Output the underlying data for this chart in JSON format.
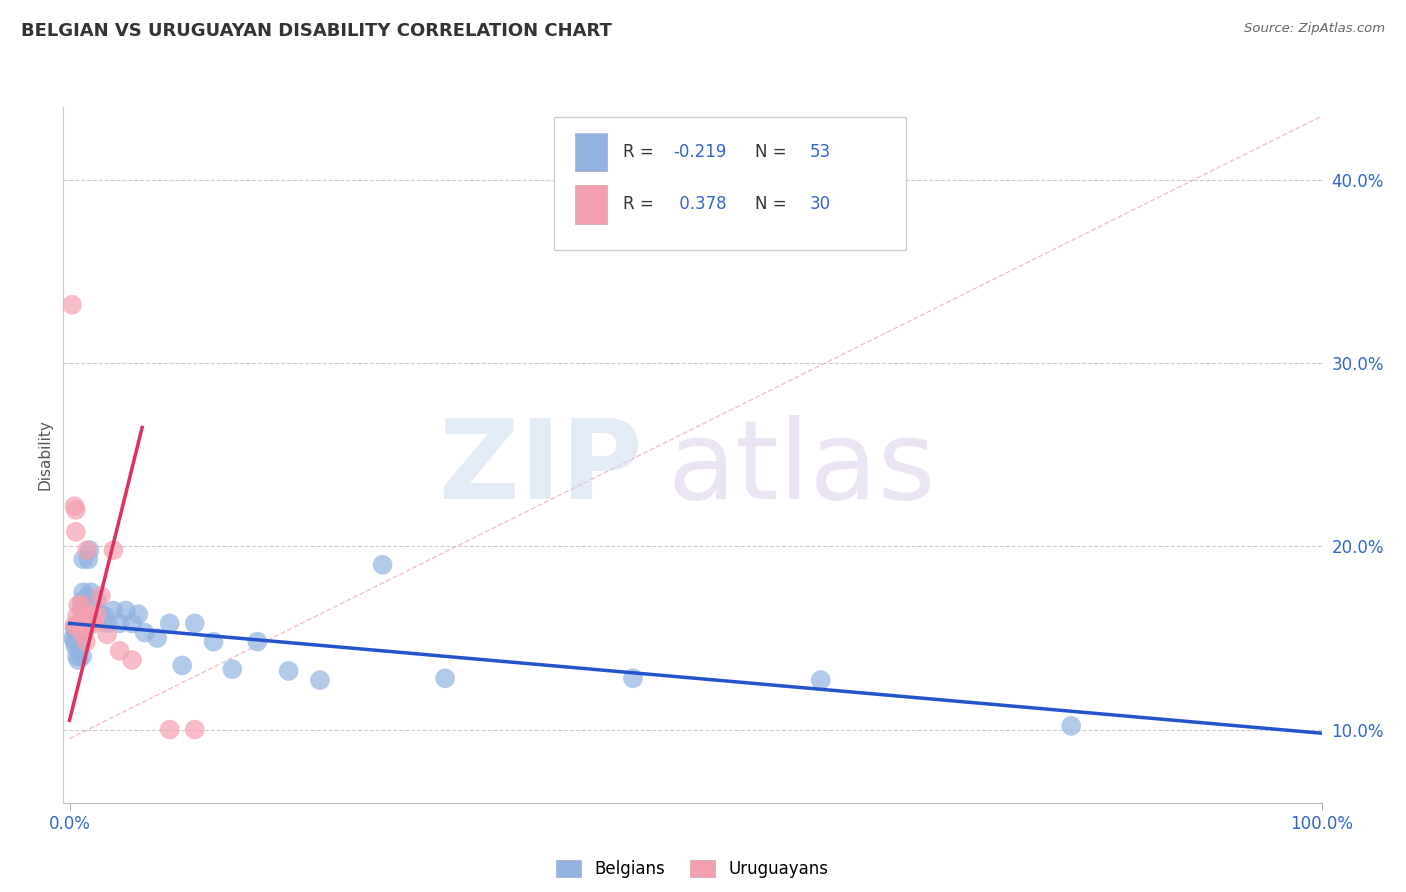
{
  "title": "BELGIAN VS URUGUAYAN DISABILITY CORRELATION CHART",
  "source": "Source: ZipAtlas.com",
  "ylabel": "Disability",
  "belgian_color": "#92b4e0",
  "uruguayan_color": "#f4a0b0",
  "trend_blue": "#2255cc",
  "trend_pink": "#e03060",
  "ref_line_color": "#f0b0c0",
  "grid_color": "#cccccc",
  "tick_color": "#3366cc",
  "background": "#ffffff",
  "xlim": [
    -0.005,
    1.0
  ],
  "ylim": [
    0.06,
    0.44
  ],
  "yticks": [
    0.1,
    0.2,
    0.3,
    0.4
  ],
  "ytick_labels": [
    "10.0%",
    "20.0%",
    "30.0%",
    "40.0%"
  ],
  "belgians_x": [
    0.003,
    0.004,
    0.004,
    0.005,
    0.005,
    0.005,
    0.006,
    0.006,
    0.007,
    0.007,
    0.008,
    0.008,
    0.008,
    0.009,
    0.009,
    0.01,
    0.01,
    0.01,
    0.011,
    0.011,
    0.012,
    0.012,
    0.013,
    0.014,
    0.015,
    0.016,
    0.017,
    0.018,
    0.02,
    0.022,
    0.025,
    0.028,
    0.03,
    0.035,
    0.04,
    0.045,
    0.05,
    0.055,
    0.06,
    0.07,
    0.08,
    0.09,
    0.1,
    0.115,
    0.13,
    0.15,
    0.175,
    0.2,
    0.25,
    0.3,
    0.45,
    0.6,
    0.8
  ],
  "belgians_y": [
    0.15,
    0.155,
    0.148,
    0.148,
    0.155,
    0.145,
    0.152,
    0.14,
    0.15,
    0.138,
    0.158,
    0.15,
    0.143,
    0.155,
    0.148,
    0.165,
    0.17,
    0.14,
    0.175,
    0.193,
    0.158,
    0.165,
    0.155,
    0.172,
    0.193,
    0.198,
    0.175,
    0.162,
    0.165,
    0.17,
    0.163,
    0.162,
    0.158,
    0.165,
    0.158,
    0.165,
    0.158,
    0.163,
    0.153,
    0.15,
    0.158,
    0.135,
    0.158,
    0.148,
    0.133,
    0.148,
    0.132,
    0.127,
    0.19,
    0.128,
    0.128,
    0.127,
    0.102
  ],
  "uruguayans_x": [
    0.002,
    0.004,
    0.004,
    0.005,
    0.005,
    0.006,
    0.006,
    0.007,
    0.007,
    0.008,
    0.008,
    0.009,
    0.01,
    0.01,
    0.011,
    0.012,
    0.013,
    0.014,
    0.015,
    0.016,
    0.018,
    0.02,
    0.022,
    0.025,
    0.03,
    0.035,
    0.04,
    0.05,
    0.08,
    0.1
  ],
  "uruguayans_y": [
    0.332,
    0.157,
    0.222,
    0.22,
    0.208,
    0.162,
    0.157,
    0.157,
    0.168,
    0.155,
    0.157,
    0.157,
    0.157,
    0.168,
    0.152,
    0.162,
    0.148,
    0.198,
    0.162,
    0.158,
    0.163,
    0.158,
    0.163,
    0.173,
    0.152,
    0.198,
    0.143,
    0.138,
    0.1,
    0.1
  ],
  "blue_trend_x0": 0.0,
  "blue_trend_x1": 1.0,
  "blue_trend_y0": 0.158,
  "blue_trend_y1": 0.098,
  "pink_trend_x0": 0.0,
  "pink_trend_x1": 0.058,
  "pink_trend_y0": 0.105,
  "pink_trend_y1": 0.265,
  "ref_line_x0": 0.0,
  "ref_line_x1": 1.0,
  "ref_line_y0": 0.095,
  "ref_line_y1": 0.435,
  "legend_R1": "R = -0.219",
  "legend_N1": "N = 53",
  "legend_R2": "R =  0.378",
  "legend_N2": "N = 30"
}
